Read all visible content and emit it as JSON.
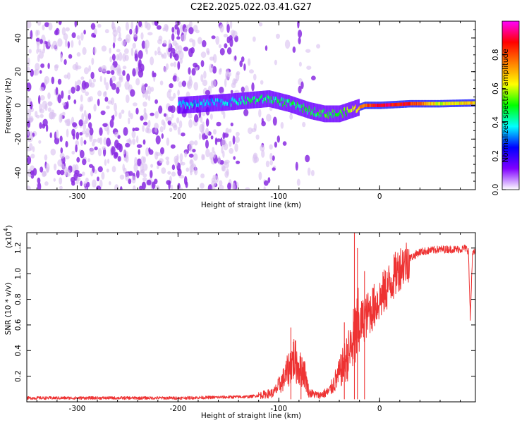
{
  "title": "C2E2.2025.022.03.41.G27",
  "colors": {
    "line": "#ee3333",
    "frame": "#000000",
    "background": "#ffffff"
  },
  "chart_data": [
    {
      "type": "heatmap",
      "xlabel": "Height of straight line (km)",
      "ylabel": "Frequency (Hz)",
      "xlim": [
        -350,
        95
      ],
      "ylim": [
        -50,
        50
      ],
      "xticks": [
        "-300",
        "-200",
        "-100",
        "0"
      ],
      "yticks": [
        "-40",
        "-20",
        "0",
        "20",
        "40"
      ],
      "xtick_values": [
        -300,
        -200,
        -100,
        0
      ],
      "ytick_values": [
        -40,
        -20,
        0,
        20,
        40
      ],
      "colormap": [
        "#ffffff",
        "#8000ff",
        "#0000ff",
        "#00ffff",
        "#00ff00",
        "#ffff00",
        "#ff8000",
        "#ff0000",
        "#ff00ff"
      ],
      "colorbar": {
        "label": "Normalized spectral amplitude",
        "range": [
          0,
          1
        ],
        "ticks": [
          "0.0",
          "0.2",
          "0.4",
          "0.6",
          "0.8"
        ],
        "tick_values": [
          0.0,
          0.2,
          0.4,
          0.6,
          0.8
        ]
      },
      "ridge": [
        {
          "x": -200,
          "f": 0,
          "amp": 0.35
        },
        {
          "x": -150,
          "f": 2,
          "amp": 0.35
        },
        {
          "x": -130,
          "f": 3,
          "amp": 0.45
        },
        {
          "x": -110,
          "f": 4,
          "amp": 0.45
        },
        {
          "x": -90,
          "f": 1,
          "amp": 0.45
        },
        {
          "x": -70,
          "f": -3,
          "amp": 0.45
        },
        {
          "x": -55,
          "f": -5,
          "amp": 0.5
        },
        {
          "x": -40,
          "f": -5,
          "amp": 0.5
        },
        {
          "x": -25,
          "f": -2,
          "amp": 0.6
        },
        {
          "x": -15,
          "f": 0,
          "amp": 0.8
        },
        {
          "x": 0,
          "f": 0,
          "amp": 0.9
        },
        {
          "x": 30,
          "f": 1,
          "amp": 0.85
        },
        {
          "x": 60,
          "f": 1,
          "amp": 0.6
        },
        {
          "x": 95,
          "f": 1.5,
          "amp": 0.7
        }
      ]
    },
    {
      "type": "line",
      "xlabel": "Height of straight line (km)",
      "ylabel": "SNR (10 * v/v)",
      "scale_label": "(x10",
      "scale_exponent": "4",
      "scale_suffix": ")",
      "xlim": [
        -350,
        95
      ],
      "ylim": [
        0,
        1.32
      ],
      "xticks": [
        "-300",
        "-200",
        "-100",
        "0"
      ],
      "yticks": [
        "0.2",
        "0.4",
        "0.6",
        "0.8",
        "1.0",
        "1.2"
      ],
      "xtick_values": [
        -300,
        -200,
        -100,
        0
      ],
      "ytick_values": [
        0.2,
        0.4,
        0.6,
        0.8,
        1.0,
        1.2
      ],
      "series": [
        {
          "x": [
            -350,
            -200,
            -130,
            -120,
            -105,
            -95,
            -85,
            -80,
            -75,
            -70,
            -60,
            -50,
            -40,
            -30,
            -25,
            -20,
            -10,
            0,
            10,
            20,
            30,
            40,
            60,
            80,
            85,
            88,
            90,
            92,
            95
          ],
          "y": [
            0.03,
            0.03,
            0.04,
            0.05,
            0.07,
            0.18,
            0.34,
            0.26,
            0.24,
            0.07,
            0.05,
            0.08,
            0.22,
            0.38,
            0.5,
            0.6,
            0.7,
            0.8,
            0.92,
            1.05,
            1.12,
            1.17,
            1.19,
            1.19,
            1.2,
            1.18,
            0.65,
            1.15,
            1.17
          ]
        }
      ],
      "spikes": [
        {
          "x": -88,
          "y": 0.58
        },
        {
          "x": -78,
          "y": 0.35
        },
        {
          "x": -35,
          "y": 0.62
        },
        {
          "x": -25,
          "y": 1.32
        },
        {
          "x": -22,
          "y": 1.2
        },
        {
          "x": -15,
          "y": 1.02
        }
      ]
    }
  ]
}
